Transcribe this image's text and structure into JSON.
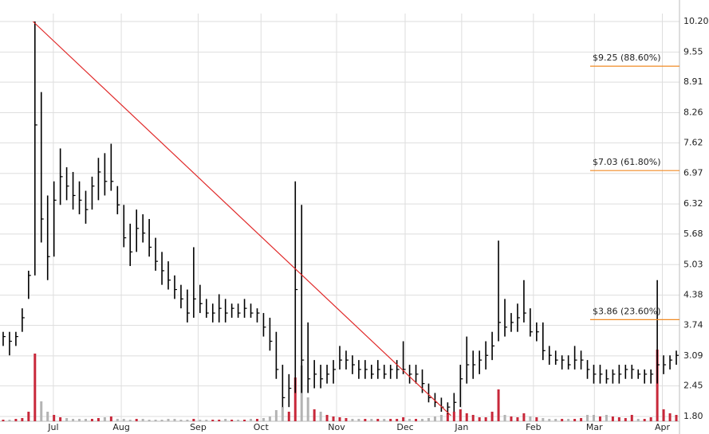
{
  "chart_data": {
    "type": "ohlc",
    "xlim": [
      0,
      107
    ],
    "xticks": [
      {
        "value": 8.4,
        "label": "Jul"
      },
      {
        "value": 19.1,
        "label": "Aug"
      },
      {
        "value": 31.2,
        "label": "Sep"
      },
      {
        "value": 41.1,
        "label": "Oct"
      },
      {
        "value": 53,
        "label": "Nov"
      },
      {
        "value": 63.8,
        "label": "Dec"
      },
      {
        "value": 72.7,
        "label": "Jan"
      },
      {
        "value": 84,
        "label": "Feb"
      },
      {
        "value": 93.6,
        "label": "Mar"
      },
      {
        "value": 104.3,
        "label": "Apr"
      }
    ],
    "ylim": [
      1.8,
      10.2
    ],
    "yticks": [
      {
        "value": 10.2,
        "label": "10.20"
      },
      9.55,
      8.91,
      8.26,
      7.62,
      6.97,
      6.32,
      5.68,
      5.03,
      4.38,
      3.74,
      3.09,
      2.45,
      {
        "value": 1.8,
        "label": "1.80"
      }
    ],
    "grid": true,
    "colors": {
      "price": "#000000",
      "up": "#c8283a",
      "down": "#b4b4b4",
      "trend": "#e02828",
      "level": "#f08a24",
      "grid": "#dedede"
    },
    "high": [
      3.6,
      3.6,
      3.6,
      4.1,
      4.9,
      10.2,
      8.7,
      6.5,
      6.8,
      7.5,
      7.1,
      7.0,
      6.8,
      6.6,
      6.9,
      7.3,
      7.4,
      7.6,
      6.7,
      6.3,
      5.9,
      6.2,
      6.1,
      6.0,
      5.6,
      5.3,
      5.1,
      4.8,
      4.6,
      4.5,
      5.4,
      4.6,
      4.3,
      4.2,
      4.4,
      4.3,
      4.2,
      4.2,
      4.3,
      4.2,
      4.1,
      4.0,
      3.9,
      3.6,
      2.9,
      2.7,
      6.8,
      6.3,
      3.8,
      3.0,
      2.9,
      2.9,
      3.0,
      3.3,
      3.2,
      3.1,
      3.0,
      3.0,
      2.9,
      3.0,
      2.9,
      2.9,
      3.0,
      3.4,
      2.9,
      2.9,
      2.8,
      2.5,
      2.3,
      2.2,
      2.1,
      2.3,
      2.9,
      3.5,
      3.2,
      3.2,
      3.4,
      3.6,
      5.54,
      4.3,
      4.0,
      4.2,
      4.7,
      4.1,
      3.8,
      3.8,
      3.3,
      3.2,
      3.1,
      3.1,
      3.3,
      3.2,
      3.0,
      2.9,
      2.9,
      2.8,
      2.8,
      2.9,
      2.9,
      2.9,
      2.8,
      2.8,
      2.8,
      4.7,
      3.1,
      3.1,
      3.2
    ],
    "low": [
      3.3,
      3.1,
      3.3,
      3.6,
      4.3,
      4.8,
      5.5,
      4.7,
      5.2,
      6.3,
      6.4,
      6.2,
      6.1,
      5.9,
      6.2,
      6.4,
      6.5,
      6.6,
      6.1,
      5.4,
      5.0,
      5.3,
      5.5,
      5.2,
      4.9,
      4.6,
      4.5,
      4.3,
      4.1,
      3.8,
      3.9,
      4.0,
      3.9,
      3.8,
      3.8,
      3.8,
      3.9,
      3.9,
      3.9,
      3.9,
      3.8,
      3.5,
      3.2,
      2.6,
      2.0,
      2.0,
      2.3,
      2.3,
      2.3,
      2.4,
      2.4,
      2.5,
      2.5,
      2.8,
      2.8,
      2.7,
      2.6,
      2.6,
      2.6,
      2.6,
      2.6,
      2.6,
      2.6,
      2.7,
      2.5,
      2.5,
      2.3,
      2.1,
      2.0,
      1.9,
      1.85,
      1.9,
      2.0,
      2.5,
      2.6,
      2.7,
      2.8,
      3.0,
      3.4,
      3.5,
      3.6,
      3.6,
      3.8,
      3.5,
      3.4,
      3.0,
      2.9,
      2.9,
      2.8,
      2.8,
      2.8,
      2.8,
      2.6,
      2.5,
      2.5,
      2.5,
      2.5,
      2.5,
      2.6,
      2.6,
      2.6,
      2.5,
      2.5,
      2.5,
      2.7,
      2.8,
      2.9
    ],
    "close": [
      3.5,
      3.4,
      3.5,
      3.9,
      4.8,
      8.0,
      6.0,
      5.2,
      6.4,
      6.9,
      6.7,
      6.5,
      6.4,
      6.2,
      6.7,
      7.0,
      6.8,
      6.8,
      6.3,
      5.6,
      5.3,
      5.8,
      5.7,
      5.4,
      5.1,
      4.9,
      4.7,
      4.5,
      4.3,
      4.0,
      4.3,
      4.2,
      4.0,
      4.0,
      4.1,
      4.0,
      4.1,
      4.0,
      4.1,
      4.0,
      4.0,
      3.7,
      3.4,
      2.8,
      2.2,
      2.4,
      4.5,
      3.0,
      2.6,
      2.7,
      2.6,
      2.7,
      2.8,
      3.0,
      3.0,
      2.9,
      2.8,
      2.8,
      2.7,
      2.8,
      2.7,
      2.8,
      2.8,
      2.8,
      2.7,
      2.7,
      2.5,
      2.2,
      2.1,
      2.0,
      2.0,
      2.1,
      2.6,
      2.9,
      2.9,
      3.0,
      3.1,
      3.3,
      3.8,
      3.7,
      3.8,
      3.9,
      4.0,
      3.6,
      3.6,
      3.2,
      3.1,
      3.0,
      3.0,
      2.9,
      3.0,
      3.0,
      2.8,
      2.7,
      2.7,
      2.6,
      2.7,
      2.7,
      2.8,
      2.8,
      2.7,
      2.7,
      2.7,
      2.9,
      2.9,
      3.0,
      3.1
    ],
    "volume": [
      2,
      2,
      3,
      4,
      12,
      85,
      25,
      12,
      8,
      5,
      4,
      3,
      3,
      3,
      3,
      4,
      5,
      6,
      3,
      3,
      2,
      3,
      3,
      2,
      2,
      2,
      3,
      3,
      2,
      2,
      3,
      2,
      2,
      2,
      2,
      3,
      2,
      2,
      2,
      3,
      3,
      4,
      6,
      14,
      18,
      12,
      55,
      70,
      30,
      15,
      12,
      8,
      6,
      5,
      4,
      3,
      3,
      3,
      3,
      3,
      3,
      3,
      3,
      5,
      3,
      3,
      3,
      4,
      6,
      8,
      10,
      12,
      15,
      10,
      8,
      5,
      5,
      12,
      40,
      8,
      6,
      5,
      10,
      6,
      5,
      4,
      3,
      3,
      3,
      3,
      3,
      4,
      8,
      8,
      6,
      8,
      6,
      5,
      4,
      8,
      3,
      3,
      5,
      90,
      15,
      10,
      8
    ],
    "trendline": {
      "x": [
        5.2,
        71
      ],
      "y": [
        10.2,
        1.82
      ]
    },
    "levels": [
      {
        "label": "$9.25 (88.60%)",
        "value": 9.25
      },
      {
        "label": "$7.03 (61.80%)",
        "value": 7.03
      },
      {
        "label": "$3.86 (23.60%)",
        "value": 3.86
      }
    ]
  }
}
